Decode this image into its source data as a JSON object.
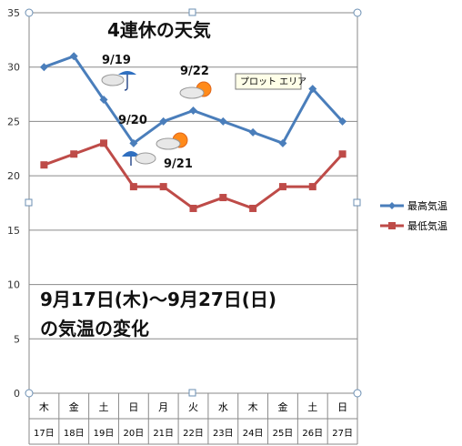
{
  "chart_data": {
    "type": "line",
    "title": "4連休の天気",
    "subtitle_lines": [
      "9月17日(木)〜9月27日(日)",
      "の気温の変化"
    ],
    "categories": [
      {
        "day": "木",
        "date": "17日"
      },
      {
        "day": "金",
        "date": "18日"
      },
      {
        "day": "土",
        "date": "19日"
      },
      {
        "day": "日",
        "date": "20日"
      },
      {
        "day": "月",
        "date": "21日"
      },
      {
        "day": "火",
        "date": "22日"
      },
      {
        "day": "水",
        "date": "23日"
      },
      {
        "day": "木",
        "date": "24日"
      },
      {
        "day": "金",
        "date": "25日"
      },
      {
        "day": "土",
        "date": "26日"
      },
      {
        "day": "日",
        "date": "27日"
      }
    ],
    "series": [
      {
        "name": "最高気温",
        "color": "#4a7ebb",
        "marker": "diamond",
        "values": [
          30,
          31,
          27,
          23,
          25,
          26,
          25,
          24,
          23,
          28,
          25
        ]
      },
      {
        "name": "最低気温",
        "color": "#be4b48",
        "marker": "square",
        "values": [
          21,
          22,
          23,
          19,
          19,
          17,
          18,
          17,
          19,
          19,
          22
        ]
      }
    ],
    "ylim": [
      0,
      35
    ],
    "yticks": [
      "0",
      "5",
      "10",
      "15",
      "20",
      "25",
      "30",
      "35"
    ],
    "grid": true,
    "legend": "right",
    "annotations": [
      {
        "text": "9/19",
        "icon": "rain-umbrella-icon"
      },
      {
        "text": "9/20",
        "icon": "cloud-rain-icon"
      },
      {
        "text": "9/21",
        "icon": "cloud-sun-icon"
      },
      {
        "text": "9/22",
        "icon": "cloud-sun-icon"
      }
    ],
    "tooltip": "プロット エリア"
  }
}
